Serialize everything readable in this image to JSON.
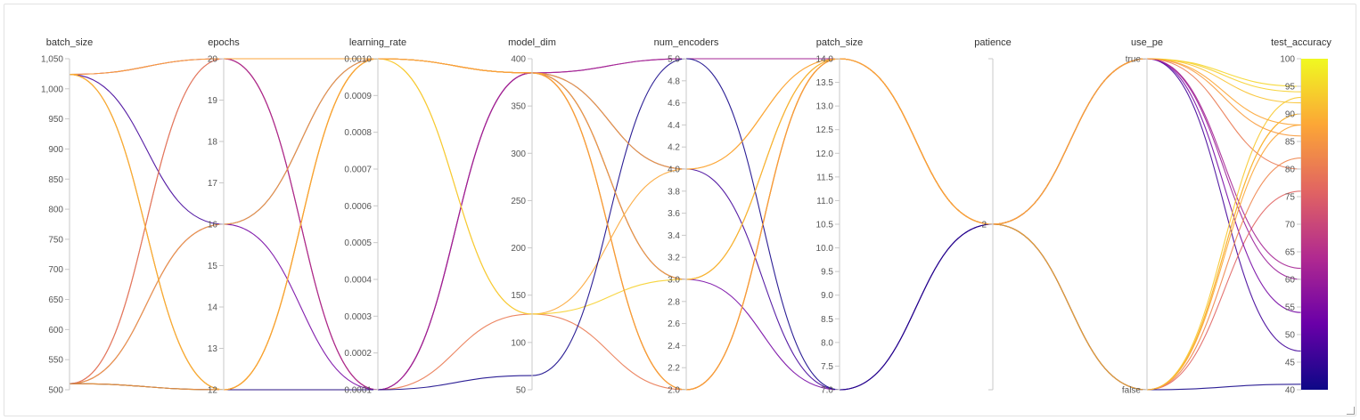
{
  "chart_data": {
    "type": "parallel_coordinates",
    "axes": [
      {
        "key": "batch_size",
        "label": "batch_size",
        "range": [
          500,
          1050
        ],
        "ticks": [
          500,
          550,
          600,
          650,
          700,
          750,
          800,
          850,
          900,
          950,
          1000,
          1050
        ],
        "tick_labels": [
          "500",
          "550",
          "600",
          "650",
          "700",
          "750",
          "800",
          "850",
          "900",
          "950",
          "1,000",
          "1,050"
        ]
      },
      {
        "key": "epochs",
        "label": "epochs",
        "range": [
          12,
          20
        ],
        "ticks": [
          12,
          13,
          14,
          15,
          16,
          17,
          18,
          19,
          20
        ],
        "tick_labels": [
          "12",
          "13",
          "14",
          "15",
          "16",
          "17",
          "18",
          "19",
          "20"
        ]
      },
      {
        "key": "learning_rate",
        "label": "learning_rate",
        "range": [
          0.0001,
          0.001
        ],
        "ticks": [
          0.0001,
          0.0002,
          0.0003,
          0.0004,
          0.0005,
          0.0006,
          0.0007,
          0.0008,
          0.0009,
          0.001
        ],
        "tick_labels": [
          "0.0001",
          "0.0002",
          "0.0003",
          "0.0004",
          "0.0005",
          "0.0006",
          "0.0007",
          "0.0008",
          "0.0009",
          "0.0010"
        ]
      },
      {
        "key": "model_dim",
        "label": "model_dim",
        "range": [
          50,
          400
        ],
        "ticks": [
          50,
          100,
          150,
          200,
          250,
          300,
          350,
          400
        ],
        "tick_labels": [
          "50",
          "100",
          "150",
          "200",
          "250",
          "300",
          "350",
          "400"
        ]
      },
      {
        "key": "num_encoders",
        "label": "num_encoders",
        "range": [
          2,
          5
        ],
        "ticks": [
          2,
          2.2,
          2.4,
          2.6,
          2.8,
          3,
          3.2,
          3.4,
          3.6,
          3.8,
          4,
          4.2,
          4.4,
          4.6,
          4.8,
          5
        ],
        "tick_labels": [
          "2.0",
          "2.2",
          "2.4",
          "2.6",
          "2.8",
          "3.0",
          "3.2",
          "3.4",
          "3.6",
          "3.8",
          "4.0",
          "4.2",
          "4.4",
          "4.6",
          "4.8",
          "5.0"
        ]
      },
      {
        "key": "patch_size",
        "label": "patch_size",
        "range": [
          7,
          14
        ],
        "ticks": [
          7,
          7.5,
          8,
          8.5,
          9,
          9.5,
          10,
          10.5,
          11,
          11.5,
          12,
          12.5,
          13,
          13.5,
          14
        ],
        "tick_labels": [
          "7.0",
          "7.5",
          "8.0",
          "8.5",
          "9.0",
          "9.5",
          "10.0",
          "10.5",
          "11.0",
          "11.5",
          "12.0",
          "12.5",
          "13.0",
          "13.5",
          "14.0"
        ]
      },
      {
        "key": "patience",
        "label": "patience",
        "range": [
          1,
          3
        ],
        "ticks": [
          2
        ],
        "tick_labels": [
          "2"
        ]
      },
      {
        "key": "use_pe",
        "label": "use_pe",
        "range": [
          0,
          1
        ],
        "ticks": [
          0,
          1
        ],
        "tick_labels": [
          "false",
          "true"
        ]
      },
      {
        "key": "test_accuracy",
        "label": "test_accuracy",
        "range": [
          40,
          100
        ],
        "ticks": [
          40,
          45,
          50,
          55,
          60,
          65,
          70,
          75,
          80,
          85,
          90,
          95,
          100
        ],
        "tick_labels": [
          "40",
          "45",
          "50",
          "55",
          "60",
          "65",
          "70",
          "75",
          "80",
          "85",
          "90",
          "95",
          "100"
        ]
      }
    ],
    "colorbar": {
      "metric": "test_accuracy",
      "range": [
        40,
        100
      ],
      "stops": [
        "#0d0887",
        "#6a00a8",
        "#b12a90",
        "#e16462",
        "#fca636",
        "#f0f921"
      ]
    },
    "series": [
      {
        "values": [
          1024,
          16,
          0.001,
          385,
          4,
          7,
          2,
          1,
          47
        ]
      },
      {
        "values": [
          1024,
          20,
          0.0001,
          385,
          5,
          14,
          2,
          1,
          60
        ]
      },
      {
        "values": [
          1024,
          20,
          0.0001,
          385,
          3,
          14,
          2,
          0,
          76
        ]
      },
      {
        "values": [
          1024,
          12,
          0.001,
          385,
          2,
          14,
          2,
          1,
          92
        ]
      },
      {
        "values": [
          1024,
          12,
          0.001,
          385,
          2,
          14,
          2,
          0,
          90
        ]
      },
      {
        "values": [
          1024,
          12,
          0.0001,
          130,
          2,
          14,
          2,
          1,
          80
        ]
      },
      {
        "values": [
          510,
          16,
          0.0001,
          385,
          3,
          7,
          2,
          1,
          54
        ]
      },
      {
        "values": [
          510,
          20,
          0.0001,
          385,
          5,
          14,
          2,
          1,
          62
        ]
      },
      {
        "values": [
          510,
          12,
          0.001,
          385,
          2,
          14,
          2,
          0,
          93
        ]
      },
      {
        "values": [
          510,
          12,
          0.001,
          385,
          2,
          14,
          2,
          1,
          95
        ]
      },
      {
        "values": [
          510,
          16,
          0.001,
          130,
          4,
          14,
          2,
          0,
          88
        ]
      },
      {
        "values": [
          510,
          12,
          0.001,
          130,
          3,
          14,
          2,
          1,
          94
        ]
      },
      {
        "values": [
          510,
          20,
          0.001,
          385,
          2,
          14,
          2,
          0,
          82
        ]
      },
      {
        "values": [
          510,
          12,
          0.0001,
          65,
          5,
          7,
          2,
          0,
          41
        ]
      },
      {
        "values": [
          1024,
          20,
          0.001,
          385,
          4,
          14,
          2,
          1,
          88
        ]
      },
      {
        "values": [
          1024,
          12,
          0.001,
          385,
          3,
          14,
          2,
          0,
          90
        ]
      },
      {
        "values": [
          510,
          12,
          0.001,
          385,
          2,
          14,
          2,
          1,
          86
        ]
      }
    ]
  }
}
